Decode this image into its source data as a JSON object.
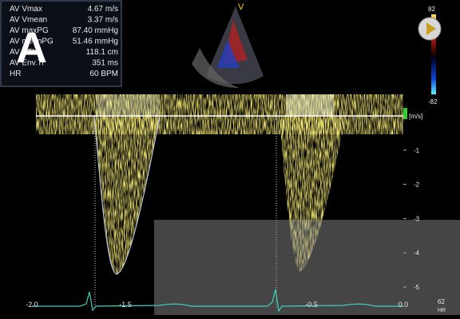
{
  "panel_label": "A",
  "measurements": [
    {
      "label": "AV Vmax",
      "value": "4.67 m/s"
    },
    {
      "label": "AV Vmean",
      "value": "3.37 m/s"
    },
    {
      "label": "AV maxPG",
      "value": "87.40 mmHg"
    },
    {
      "label": "AV meanPG",
      "value": "51.46 mmHg"
    },
    {
      "label": "AV VTI",
      "value": "118.1 cm"
    },
    {
      "label": "AV Env.Ti",
      "value": "351 ms"
    },
    {
      "label": "HR",
      "value": "60 BPM"
    }
  ],
  "velocity_scale": [
    "[m/s]",
    "-1",
    "-2",
    "-3",
    "-4",
    "-5"
  ],
  "time_scale": [
    "-2.0",
    "-1.5",
    "-0.5",
    "0.0"
  ],
  "color_bar": [
    "82",
    "-82"
  ],
  "hr_readout": [
    "62",
    "HR"
  ]
}
